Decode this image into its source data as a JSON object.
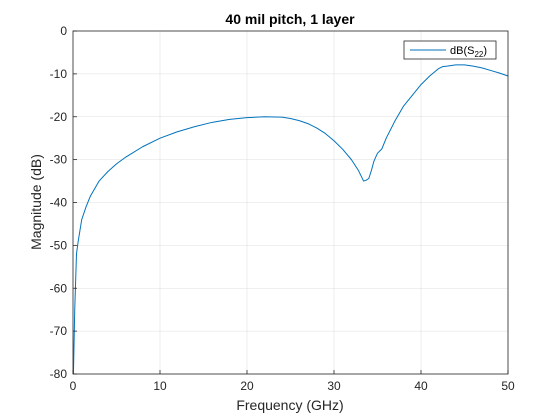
{
  "chart_data": {
    "type": "line",
    "title": "40 mil pitch, 1 layer",
    "xlabel": "Frequency (GHz)",
    "ylabel": "Magnitude (dB)",
    "xlim": [
      0,
      50
    ],
    "ylim": [
      -80,
      0
    ],
    "xticks": [
      0,
      10,
      20,
      30,
      40,
      50
    ],
    "yticks": [
      0,
      -10,
      -20,
      -30,
      -40,
      -50,
      -60,
      -70,
      -80
    ],
    "xtick_labels": [
      "0",
      "10",
      "20",
      "30",
      "40",
      "50"
    ],
    "ytick_labels": [
      "0",
      "-10",
      "-20",
      "-30",
      "-40",
      "-50",
      "-60",
      "-70",
      "-80"
    ],
    "grid": true,
    "legend_position": "top-right",
    "legend": {
      "prefix": "dB(S",
      "subscript": "22",
      "suffix": ")"
    },
    "series": [
      {
        "name": "dB(S22)",
        "color": "#0072bd",
        "points": [
          [
            0.05,
            -80
          ],
          [
            0.2,
            -65
          ],
          [
            0.4,
            -52
          ],
          [
            0.6,
            -49
          ],
          [
            1,
            -44
          ],
          [
            1.5,
            -41
          ],
          [
            2,
            -38.5
          ],
          [
            3,
            -35
          ],
          [
            4,
            -32.8
          ],
          [
            5,
            -31
          ],
          [
            6,
            -29.5
          ],
          [
            8,
            -27
          ],
          [
            10,
            -25
          ],
          [
            12,
            -23.5
          ],
          [
            14,
            -22.3
          ],
          [
            16,
            -21.3
          ],
          [
            18,
            -20.6
          ],
          [
            20,
            -20.2
          ],
          [
            22,
            -20.0
          ],
          [
            24,
            -20.1
          ],
          [
            25,
            -20.4
          ],
          [
            26,
            -20.9
          ],
          [
            27,
            -21.6
          ],
          [
            28,
            -22.6
          ],
          [
            29,
            -23.9
          ],
          [
            30,
            -25.6
          ],
          [
            31,
            -27.6
          ],
          [
            32,
            -30.0
          ],
          [
            32.8,
            -32.5
          ],
          [
            33.4,
            -35.0
          ],
          [
            33.7,
            -34.8
          ],
          [
            34.0,
            -34.4
          ],
          [
            34.3,
            -32.5
          ],
          [
            34.6,
            -30.3
          ],
          [
            35.0,
            -28.5
          ],
          [
            35.5,
            -27.5
          ],
          [
            36,
            -25
          ],
          [
            37,
            -21
          ],
          [
            38,
            -17.5
          ],
          [
            39,
            -15
          ],
          [
            40,
            -12.5
          ],
          [
            41,
            -10.5
          ],
          [
            42,
            -8.8
          ],
          [
            42.5,
            -8.3
          ],
          [
            43,
            -8.2
          ],
          [
            44,
            -7.9
          ],
          [
            45,
            -7.9
          ],
          [
            46,
            -8.2
          ],
          [
            47,
            -8.6
          ],
          [
            48,
            -9.2
          ],
          [
            49,
            -9.8
          ],
          [
            50,
            -10.5
          ]
        ]
      }
    ]
  }
}
